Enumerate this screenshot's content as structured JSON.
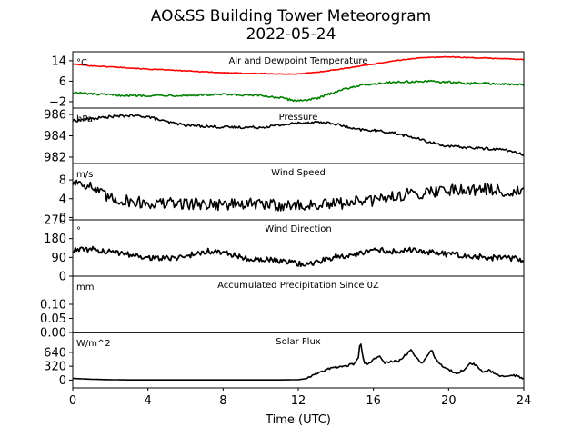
{
  "title": "AO&SS Building Tower Meteorogram",
  "subtitle": "2022-05-24",
  "xlabel": "Time (UTC)",
  "x_ticks": [
    0,
    4,
    8,
    12,
    16,
    20,
    24
  ],
  "x_range": [
    0,
    24
  ],
  "chart_data": [
    {
      "type": "line",
      "title": "Air and Dewpoint Temperature",
      "unit": "°C",
      "ylim": [
        -4.5,
        17.5
      ],
      "yticks": [
        14,
        6,
        -2
      ],
      "ytick_labels": [
        "14",
        "6",
        "−2"
      ],
      "series": [
        {
          "color": "#ff0000",
          "width": 1.6,
          "x": [
            0,
            1,
            2,
            3,
            4,
            5,
            6,
            7,
            8,
            9,
            10,
            11,
            12,
            13,
            14,
            15,
            16,
            17,
            18,
            19,
            20,
            21,
            22,
            23,
            24
          ],
          "y": [
            12.7,
            12.0,
            11.6,
            11.2,
            10.7,
            10.4,
            10.0,
            9.7,
            9.3,
            9.1,
            9.0,
            8.8,
            8.8,
            9.5,
            10.5,
            11.6,
            12.7,
            13.8,
            14.8,
            15.3,
            15.5,
            15.2,
            15.0,
            14.8,
            14.4
          ],
          "noise": 0.15
        },
        {
          "color": "#008000",
          "width": 1.6,
          "x": [
            0,
            1,
            2,
            3,
            4,
            5,
            6,
            7,
            8,
            9,
            10,
            11,
            11.5,
            12,
            12.5,
            13,
            14,
            15,
            16,
            17,
            18,
            19,
            20,
            21,
            22,
            23,
            24
          ],
          "y": [
            1.6,
            1.0,
            0.6,
            0.4,
            0.4,
            0.5,
            0.4,
            0.6,
            0.8,
            0.5,
            0.4,
            -0.4,
            -1.2,
            -1.6,
            -1.2,
            -0.8,
            2.0,
            4.0,
            5.0,
            5.6,
            5.8,
            5.9,
            5.6,
            5.1,
            5.2,
            4.8,
            4.6
          ],
          "noise": 0.4
        }
      ]
    },
    {
      "type": "line",
      "title": "Pressure",
      "unit": "hPa",
      "ylim": [
        981.4,
        986.6
      ],
      "yticks": [
        986,
        984,
        982
      ],
      "ytick_labels": [
        "986",
        "984",
        "982"
      ],
      "series": [
        {
          "color": "#000000",
          "width": 1.6,
          "x": [
            0,
            1,
            2,
            3,
            4,
            5,
            6,
            7,
            8,
            9,
            10,
            11,
            12,
            13,
            14,
            15,
            16,
            17,
            18,
            19,
            20,
            21,
            22,
            23,
            24
          ],
          "y": [
            985.4,
            985.6,
            985.8,
            985.9,
            985.8,
            985.3,
            985.0,
            984.9,
            984.8,
            984.8,
            984.8,
            985.0,
            985.2,
            985.3,
            985.1,
            984.6,
            984.5,
            984.3,
            983.9,
            983.4,
            983.0,
            982.9,
            982.8,
            982.7,
            982.2
          ],
          "noise": 0.12
        }
      ]
    },
    {
      "type": "line",
      "title": "Wind Speed",
      "unit": "m/s",
      "ylim": [
        -0.5,
        11.5
      ],
      "yticks": [
        8,
        4,
        0
      ],
      "ytick_labels": [
        "8",
        "4",
        "0"
      ],
      "series": [
        {
          "color": "#000000",
          "width": 1.6,
          "x": [
            0,
            0.5,
            1,
            1.5,
            2,
            3,
            4,
            6,
            8,
            10,
            12,
            14,
            15,
            16,
            17,
            18,
            19,
            20,
            21,
            22,
            23,
            24
          ],
          "y": [
            7.5,
            7.5,
            6.5,
            5.0,
            4.0,
            3.5,
            3.0,
            3.0,
            2.8,
            2.8,
            2.5,
            2.8,
            3.5,
            3.5,
            4.5,
            5.0,
            5.5,
            6.0,
            6.0,
            6.0,
            5.5,
            5.5
          ],
          "noise": 1.3
        }
      ]
    },
    {
      "type": "line",
      "title": "Wind Direction",
      "unit": "°",
      "ylim": [
        0,
        270
      ],
      "yticks": [
        270,
        180,
        90,
        0
      ],
      "ytick_labels": [
        "270",
        "180",
        "90",
        "0"
      ],
      "series": [
        {
          "color": "#000000",
          "width": 1.8,
          "x": [
            0,
            1,
            2,
            3,
            4,
            5,
            6,
            7,
            8,
            9,
            10,
            11,
            12,
            13,
            14,
            15,
            16,
            17,
            18,
            19,
            20,
            21,
            22,
            23,
            24
          ],
          "y": [
            125,
            128,
            115,
            105,
            90,
            85,
            95,
            120,
            115,
            90,
            80,
            72,
            60,
            65,
            95,
            100,
            125,
            120,
            125,
            115,
            105,
            95,
            90,
            85,
            80
          ],
          "noise": 14
        }
      ]
    },
    {
      "type": "line",
      "title": "Accumulated Precipitation Since 0Z",
      "unit": "mm",
      "ylim": [
        0,
        0.2
      ],
      "yticks": [
        0.1,
        0.05,
        0.0
      ],
      "ytick_labels": [
        "0.10",
        "0.05",
        "0.00"
      ],
      "series": [
        {
          "color": "#000000",
          "width": 1.8,
          "x": [
            0,
            24
          ],
          "y": [
            0,
            0
          ],
          "noise": 0
        }
      ]
    },
    {
      "type": "line",
      "title": "Solar Flux",
      "unit": "W/m^2",
      "ylim": [
        -180,
        1100
      ],
      "yticks": [
        640,
        320,
        0
      ],
      "ytick_labels": [
        "640",
        "320",
        "0"
      ],
      "series": [
        {
          "color": "#000000",
          "width": 1.6,
          "x": [
            0,
            0.5,
            1,
            2,
            3,
            4,
            5,
            6,
            7,
            8,
            9,
            10,
            11,
            12,
            12.5,
            13,
            13.5,
            14,
            14.5,
            15,
            15.2,
            15.3,
            15.5,
            15.8,
            16,
            16.3,
            16.6,
            17,
            17.3,
            17.6,
            18,
            18.3,
            18.6,
            18.9,
            19.1,
            19.3,
            19.5,
            19.8,
            20.2,
            20.5,
            20.8,
            21,
            21.2,
            21.5,
            21.8,
            22.2,
            22.6,
            23,
            23.5,
            24
          ],
          "y": [
            40,
            30,
            20,
            10,
            5,
            5,
            5,
            5,
            5,
            5,
            5,
            5,
            5,
            10,
            40,
            150,
            240,
            300,
            330,
            380,
            500,
            900,
            400,
            380,
            480,
            560,
            400,
            430,
            430,
            540,
            700,
            500,
            400,
            560,
            700,
            480,
            380,
            280,
            200,
            160,
            240,
            320,
            400,
            320,
            200,
            220,
            120,
            90,
            110,
            30
          ],
          "noise": 25
        }
      ]
    }
  ]
}
